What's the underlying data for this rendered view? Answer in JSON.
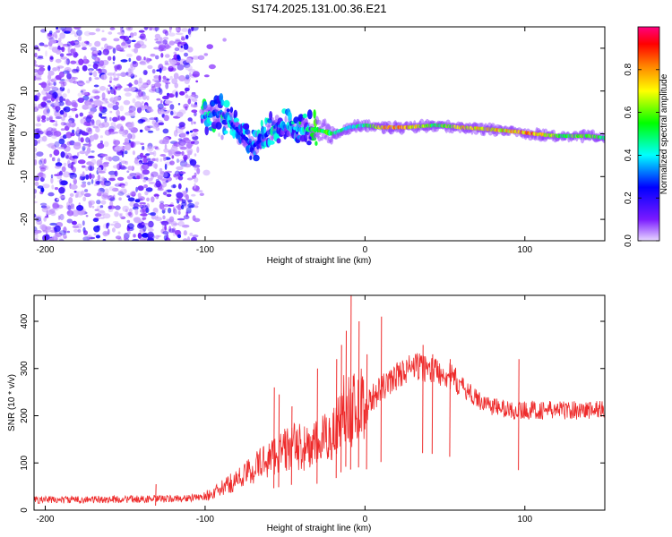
{
  "title": "S174.2025.131.00.36.E21",
  "chart_data": [
    {
      "type": "heatmap",
      "xlabel": "Height of straight line (km)",
      "ylabel": "Frequency (Hz)",
      "xlim": [
        -207,
        150
      ],
      "ylim": [
        -25,
        25
      ],
      "x_ticks": [
        -200,
        -100,
        0,
        100
      ],
      "x_tick_labels": [
        "-200",
        "-100",
        "0",
        "100"
      ],
      "y_ticks": [
        -20,
        -10,
        0,
        10,
        20
      ],
      "y_tick_labels": [
        "-20",
        "-10",
        "0",
        "10",
        "20"
      ],
      "colorbar": {
        "label": "Normalized spectral amplitude",
        "range": [
          0,
          1
        ],
        "ticks": [
          0.0,
          0.2,
          0.4,
          0.6,
          0.8
        ],
        "tick_labels": [
          "0.0",
          "0.2",
          "0.4",
          "0.6",
          "0.8"
        ],
        "colors": [
          "#e8d8ff",
          "#7a1aff",
          "#0000ff",
          "#00ffff",
          "#00ff00",
          "#ffff00",
          "#ff8000",
          "#ff0000",
          "#ff0080"
        ]
      },
      "ridge": [
        {
          "x": -100,
          "freq": 4,
          "amp": 0.4
        },
        {
          "x": -90,
          "freq": 5,
          "amp": 0.35
        },
        {
          "x": -80,
          "freq": 1,
          "amp": 0.3
        },
        {
          "x": -70,
          "freq": -3,
          "amp": 0.3
        },
        {
          "x": -55,
          "freq": 2,
          "amp": 0.35
        },
        {
          "x": -40,
          "freq": 1,
          "amp": 0.45
        },
        {
          "x": -30,
          "freq": 1,
          "amp": 0.65
        },
        {
          "x": -20,
          "freq": 0,
          "amp": 0.6
        },
        {
          "x": -10,
          "freq": 1.5,
          "amp": 0.5
        },
        {
          "x": 0,
          "freq": 2,
          "amp": 0.55
        },
        {
          "x": 10,
          "freq": 1.5,
          "amp": 0.85
        },
        {
          "x": 25,
          "freq": 1.5,
          "amp": 0.9
        },
        {
          "x": 45,
          "freq": 2,
          "amp": 0.6
        },
        {
          "x": 60,
          "freq": 1.5,
          "amp": 0.85
        },
        {
          "x": 80,
          "freq": 1,
          "amp": 0.85
        },
        {
          "x": 95,
          "freq": 0.5,
          "amp": 0.85
        },
        {
          "x": 105,
          "freq": 0,
          "amp": 0.95
        },
        {
          "x": 120,
          "freq": -0.5,
          "amp": 0.65
        },
        {
          "x": 140,
          "freq": -0.5,
          "amp": 0.7
        },
        {
          "x": 150,
          "freq": -1,
          "amp": 0.6
        }
      ]
    },
    {
      "type": "line",
      "xlabel": "Height of straight line (km)",
      "ylabel": "SNR (10 * v/v)",
      "xlim": [
        -207,
        150
      ],
      "ylim": [
        0,
        455
      ],
      "x_ticks": [
        -200,
        -100,
        0,
        100
      ],
      "x_tick_labels": [
        "-200",
        "-100",
        "0",
        "100"
      ],
      "y_ticks": [
        0,
        100,
        200,
        300,
        400
      ],
      "y_tick_labels": [
        "0",
        "100",
        "200",
        "300",
        "400"
      ],
      "color": "#ee2b2b",
      "series": [
        {
          "name": "SNR",
          "x": [
            -207,
            -180,
            -150,
            -120,
            -105,
            -95,
            -85,
            -75,
            -65,
            -55,
            -45,
            -35,
            -25,
            -18,
            -12,
            -8,
            -3,
            0,
            5,
            10,
            20,
            30,
            40,
            50,
            60,
            70,
            80,
            90,
            100,
            110,
            120,
            130,
            140,
            150
          ],
          "values": [
            22,
            22,
            23,
            24,
            26,
            35,
            55,
            75,
            100,
            120,
            135,
            130,
            150,
            170,
            230,
            210,
            230,
            210,
            240,
            255,
            285,
            305,
            300,
            290,
            265,
            235,
            220,
            212,
            212,
            212,
            212,
            212,
            212,
            215
          ]
        }
      ],
      "spikes": [
        {
          "x": -131,
          "value": 55
        },
        {
          "x": -57,
          "value": 260
        },
        {
          "x": -54,
          "value": 245
        },
        {
          "x": -46,
          "value": 220
        },
        {
          "x": -30,
          "value": 300
        },
        {
          "x": -18,
          "value": 320
        },
        {
          "x": -15,
          "value": 350
        },
        {
          "x": -12,
          "value": 380
        },
        {
          "x": -9,
          "value": 455
        },
        {
          "x": -4,
          "value": 400
        },
        {
          "x": 1,
          "value": 330
        },
        {
          "x": 10,
          "value": 410
        },
        {
          "x": 36,
          "value": 350
        },
        {
          "x": 42,
          "value": 330
        },
        {
          "x": 53,
          "value": 320
        },
        {
          "x": 96,
          "value": 320
        }
      ]
    }
  ]
}
